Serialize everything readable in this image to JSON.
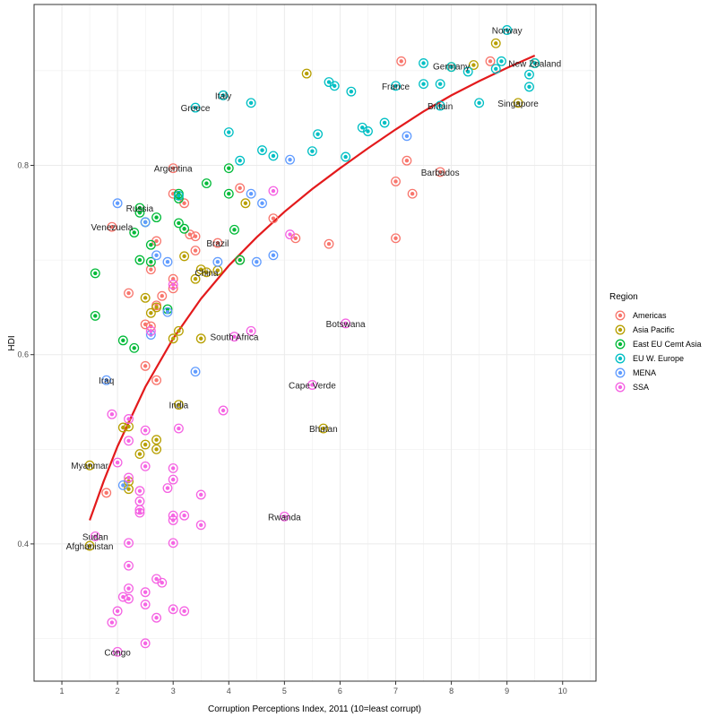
{
  "chart_data": {
    "type": "scatter",
    "title": "",
    "xlabel": "Corruption Perceptions Index, 2011 (10=least corrupt)",
    "ylabel": "HDI",
    "xlim": [
      0.5,
      10.6
    ],
    "ylim": [
      0.255,
      0.97
    ],
    "x_ticks": [
      1,
      2,
      3,
      4,
      5,
      6,
      7,
      8,
      9,
      10
    ],
    "y_ticks": [
      0.4,
      0.6,
      0.8
    ],
    "grid": true,
    "legend": {
      "title": "Region",
      "position": "right",
      "entries": [
        {
          "name": "Americas",
          "color": "#F8766D"
        },
        {
          "name": "Asia Pacific",
          "color": "#B79F00"
        },
        {
          "name": "East EU Cemt Asia",
          "color": "#00BA38"
        },
        {
          "name": "EU W. Europe",
          "color": "#00BFC4"
        },
        {
          "name": "MENA",
          "color": "#619CFF"
        },
        {
          "name": "SSA",
          "color": "#F564E3"
        }
      ]
    },
    "trend_color": "#E31A1C",
    "trend_line": [
      [
        1.5,
        0.425
      ],
      [
        1.75,
        0.466
      ],
      [
        2.0,
        0.503
      ],
      [
        2.5,
        0.566
      ],
      [
        3.0,
        0.617
      ],
      [
        3.5,
        0.659
      ],
      [
        4.0,
        0.694
      ],
      [
        4.5,
        0.724
      ],
      [
        5.0,
        0.751
      ],
      [
        5.5,
        0.775
      ],
      [
        6.0,
        0.797
      ],
      [
        6.5,
        0.818
      ],
      [
        7.0,
        0.838
      ],
      [
        7.5,
        0.857
      ],
      [
        8.0,
        0.874
      ],
      [
        8.5,
        0.889
      ],
      [
        9.0,
        0.903
      ],
      [
        9.5,
        0.916
      ]
    ],
    "labels": [
      {
        "text": "Norway",
        "x": 9.0,
        "y": 0.943
      },
      {
        "text": "New Zealand",
        "x": 9.5,
        "y": 0.908
      },
      {
        "text": "Germany",
        "x": 8.0,
        "y": 0.905
      },
      {
        "text": "France",
        "x": 7.0,
        "y": 0.884
      },
      {
        "text": "Italy",
        "x": 3.9,
        "y": 0.874
      },
      {
        "text": "Greece",
        "x": 3.4,
        "y": 0.861
      },
      {
        "text": "Britain",
        "x": 7.8,
        "y": 0.863
      },
      {
        "text": "Singapore",
        "x": 9.2,
        "y": 0.866
      },
      {
        "text": "Argentina",
        "x": 3.0,
        "y": 0.797
      },
      {
        "text": "Barbados",
        "x": 7.8,
        "y": 0.793
      },
      {
        "text": "Russia",
        "x": 2.4,
        "y": 0.755
      },
      {
        "text": "Venezuela",
        "x": 1.9,
        "y": 0.735
      },
      {
        "text": "Brazil",
        "x": 3.8,
        "y": 0.718
      },
      {
        "text": "China",
        "x": 3.6,
        "y": 0.687
      },
      {
        "text": "Botswana",
        "x": 6.1,
        "y": 0.633
      },
      {
        "text": "South Africa",
        "x": 4.1,
        "y": 0.619
      },
      {
        "text": "Iraq",
        "x": 1.8,
        "y": 0.573
      },
      {
        "text": "Cape Verde",
        "x": 5.5,
        "y": 0.568
      },
      {
        "text": "India",
        "x": 3.1,
        "y": 0.547
      },
      {
        "text": "Bhutan",
        "x": 5.7,
        "y": 0.522
      },
      {
        "text": "Myanmar",
        "x": 1.5,
        "y": 0.483
      },
      {
        "text": "Rwanda",
        "x": 5.0,
        "y": 0.429
      },
      {
        "text": "Sudan",
        "x": 1.6,
        "y": 0.408
      },
      {
        "text": "Afghanistan",
        "x": 1.5,
        "y": 0.398
      },
      {
        "text": "Congo",
        "x": 2.0,
        "y": 0.286
      }
    ],
    "series": [
      {
        "name": "Americas",
        "points": [
          [
            7.1,
            0.91
          ],
          [
            8.7,
            0.91
          ],
          [
            7.2,
            0.805
          ],
          [
            7.8,
            0.793
          ],
          [
            7.0,
            0.783
          ],
          [
            7.3,
            0.77
          ],
          [
            4.2,
            0.776
          ],
          [
            4.8,
            0.744
          ],
          [
            3.0,
            0.77
          ],
          [
            3.2,
            0.76
          ],
          [
            3.3,
            0.727
          ],
          [
            3.4,
            0.725
          ],
          [
            3.0,
            0.797
          ],
          [
            2.7,
            0.72
          ],
          [
            3.8,
            0.718
          ],
          [
            5.8,
            0.717
          ],
          [
            7.0,
            0.723
          ],
          [
            5.2,
            0.723
          ],
          [
            3.4,
            0.71
          ],
          [
            2.6,
            0.69
          ],
          [
            3.0,
            0.68
          ],
          [
            2.2,
            0.665
          ],
          [
            2.8,
            0.662
          ],
          [
            2.7,
            0.652
          ],
          [
            2.6,
            0.63
          ],
          [
            2.5,
            0.588
          ],
          [
            2.7,
            0.573
          ],
          [
            1.8,
            0.454
          ],
          [
            4.2,
            0.7
          ],
          [
            3.0,
            0.67
          ],
          [
            2.5,
            0.632
          ],
          [
            1.9,
            0.735
          ]
        ]
      },
      {
        "name": "Asia Pacific",
        "points": [
          [
            8.8,
            0.929
          ],
          [
            9.5,
            0.908
          ],
          [
            8.4,
            0.906
          ],
          [
            8.0,
            0.904
          ],
          [
            5.4,
            0.897
          ],
          [
            9.2,
            0.866
          ],
          [
            4.3,
            0.76
          ],
          [
            3.5,
            0.69
          ],
          [
            3.6,
            0.687
          ],
          [
            3.4,
            0.68
          ],
          [
            3.2,
            0.704
          ],
          [
            2.7,
            0.65
          ],
          [
            2.6,
            0.644
          ],
          [
            2.5,
            0.66
          ],
          [
            3.0,
            0.617
          ],
          [
            3.1,
            0.625
          ],
          [
            3.5,
            0.617
          ],
          [
            3.1,
            0.547
          ],
          [
            2.2,
            0.524
          ],
          [
            2.1,
            0.523
          ],
          [
            2.7,
            0.51
          ],
          [
            2.5,
            0.505
          ],
          [
            2.7,
            0.5
          ],
          [
            2.4,
            0.495
          ],
          [
            2.2,
            0.466
          ],
          [
            2.2,
            0.458
          ],
          [
            1.5,
            0.483
          ],
          [
            1.5,
            0.398
          ],
          [
            5.7,
            0.522
          ],
          [
            3.8,
            0.689
          ]
        ]
      },
      {
        "name": "East EU Cemt Asia",
        "points": [
          [
            4.0,
            0.797
          ],
          [
            4.1,
            0.732
          ],
          [
            3.6,
            0.781
          ],
          [
            4.0,
            0.77
          ],
          [
            3.1,
            0.77
          ],
          [
            3.1,
            0.765
          ],
          [
            2.4,
            0.755
          ],
          [
            2.7,
            0.745
          ],
          [
            2.4,
            0.75
          ],
          [
            2.3,
            0.729
          ],
          [
            3.1,
            0.739
          ],
          [
            3.2,
            0.733
          ],
          [
            2.6,
            0.716
          ],
          [
            2.4,
            0.7
          ],
          [
            2.6,
            0.698
          ],
          [
            1.6,
            0.686
          ],
          [
            2.9,
            0.648
          ],
          [
            1.6,
            0.641
          ],
          [
            2.1,
            0.615
          ],
          [
            2.3,
            0.607
          ],
          [
            4.2,
            0.7
          ],
          [
            2.5,
            0.74
          ]
        ]
      },
      {
        "name": "EU W. Europe",
        "points": [
          [
            9.0,
            0.943
          ],
          [
            9.5,
            0.908
          ],
          [
            8.9,
            0.91
          ],
          [
            8.8,
            0.902
          ],
          [
            7.5,
            0.908
          ],
          [
            8.3,
            0.899
          ],
          [
            9.4,
            0.896
          ],
          [
            9.4,
            0.883
          ],
          [
            8.0,
            0.904
          ],
          [
            7.8,
            0.886
          ],
          [
            7.5,
            0.886
          ],
          [
            7.0,
            0.884
          ],
          [
            5.8,
            0.888
          ],
          [
            5.9,
            0.884
          ],
          [
            6.2,
            0.878
          ],
          [
            3.9,
            0.874
          ],
          [
            4.4,
            0.866
          ],
          [
            3.4,
            0.861
          ],
          [
            8.5,
            0.866
          ],
          [
            6.4,
            0.84
          ],
          [
            6.5,
            0.836
          ],
          [
            6.8,
            0.845
          ],
          [
            4.0,
            0.835
          ],
          [
            5.6,
            0.833
          ],
          [
            4.6,
            0.816
          ],
          [
            4.8,
            0.81
          ],
          [
            4.2,
            0.805
          ],
          [
            5.5,
            0.815
          ],
          [
            6.1,
            0.809
          ],
          [
            3.1,
            0.768
          ],
          [
            7.8,
            0.863
          ]
        ]
      },
      {
        "name": "MENA",
        "points": [
          [
            7.2,
            0.831
          ],
          [
            5.1,
            0.806
          ],
          [
            4.4,
            0.77
          ],
          [
            4.6,
            0.76
          ],
          [
            2.0,
            0.76
          ],
          [
            2.5,
            0.74
          ],
          [
            2.7,
            0.705
          ],
          [
            2.9,
            0.698
          ],
          [
            3.8,
            0.698
          ],
          [
            4.5,
            0.698
          ],
          [
            4.8,
            0.705
          ],
          [
            2.9,
            0.645
          ],
          [
            2.6,
            0.621
          ],
          [
            3.4,
            0.582
          ],
          [
            1.8,
            0.573
          ],
          [
            2.1,
            0.462
          ]
        ]
      },
      {
        "name": "SSA",
        "points": [
          [
            4.8,
            0.773
          ],
          [
            5.1,
            0.727
          ],
          [
            3.0,
            0.674
          ],
          [
            6.1,
            0.633
          ],
          [
            4.4,
            0.625
          ],
          [
            4.1,
            0.619
          ],
          [
            2.6,
            0.625
          ],
          [
            5.5,
            0.568
          ],
          [
            3.9,
            0.541
          ],
          [
            1.9,
            0.537
          ],
          [
            2.2,
            0.532
          ],
          [
            2.5,
            0.52
          ],
          [
            3.1,
            0.522
          ],
          [
            2.2,
            0.509
          ],
          [
            2.0,
            0.486
          ],
          [
            2.5,
            0.482
          ],
          [
            2.2,
            0.47
          ],
          [
            3.0,
            0.48
          ],
          [
            3.0,
            0.468
          ],
          [
            2.9,
            0.459
          ],
          [
            2.4,
            0.456
          ],
          [
            3.5,
            0.452
          ],
          [
            2.4,
            0.445
          ],
          [
            2.4,
            0.436
          ],
          [
            2.4,
            0.433
          ],
          [
            3.0,
            0.43
          ],
          [
            3.2,
            0.43
          ],
          [
            3.0,
            0.425
          ],
          [
            3.5,
            0.42
          ],
          [
            2.2,
            0.401
          ],
          [
            3.0,
            0.401
          ],
          [
            5.0,
            0.429
          ],
          [
            1.6,
            0.408
          ],
          [
            2.2,
            0.377
          ],
          [
            2.7,
            0.363
          ],
          [
            2.8,
            0.359
          ],
          [
            2.2,
            0.353
          ],
          [
            2.5,
            0.349
          ],
          [
            2.1,
            0.344
          ],
          [
            2.2,
            0.342
          ],
          [
            2.0,
            0.329
          ],
          [
            2.5,
            0.336
          ],
          [
            3.0,
            0.331
          ],
          [
            3.2,
            0.329
          ],
          [
            2.7,
            0.322
          ],
          [
            1.9,
            0.317
          ],
          [
            2.5,
            0.295
          ],
          [
            2.0,
            0.286
          ]
        ]
      }
    ]
  }
}
